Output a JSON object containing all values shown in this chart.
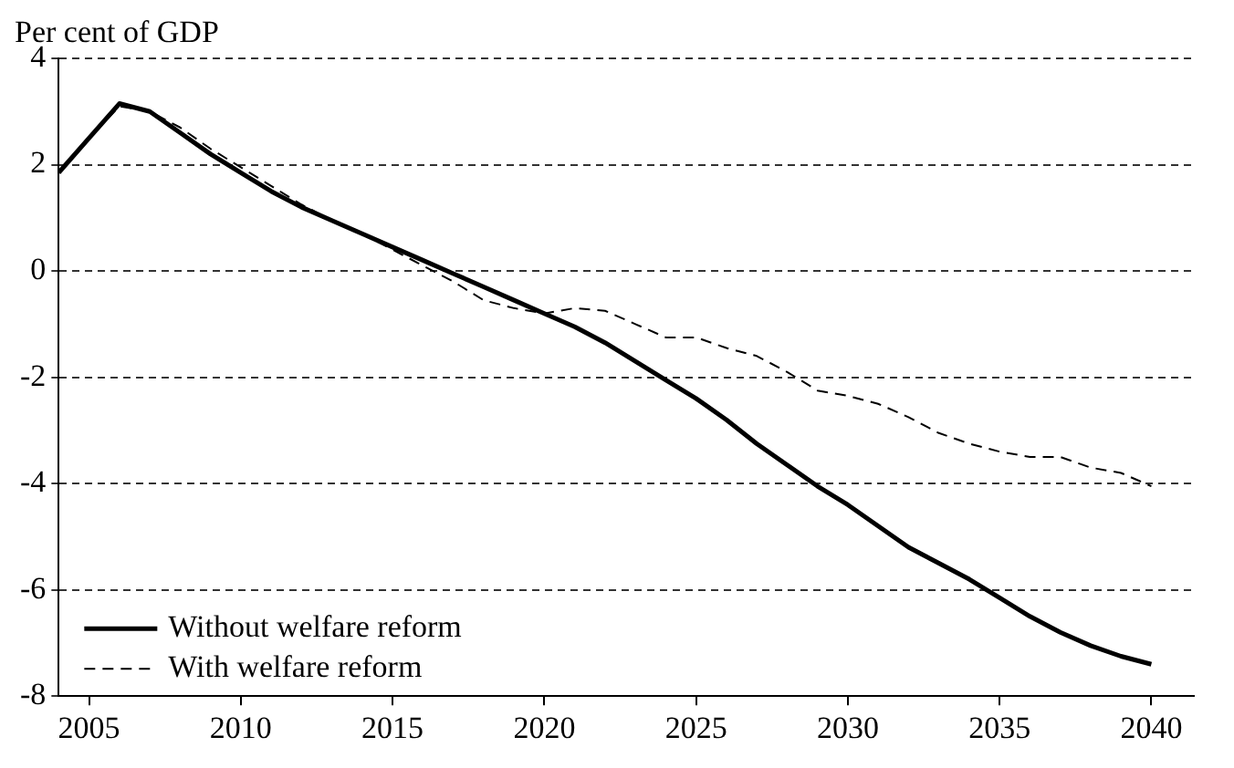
{
  "chart_data": {
    "type": "line",
    "ylabel": "Per cent of GDP",
    "x": [
      2004,
      2005,
      2006,
      2007,
      2008,
      2009,
      2010,
      2011,
      2012,
      2013,
      2014,
      2015,
      2016,
      2017,
      2018,
      2019,
      2020,
      2021,
      2022,
      2023,
      2024,
      2025,
      2026,
      2027,
      2028,
      2029,
      2030,
      2031,
      2032,
      2033,
      2034,
      2035,
      2036,
      2037,
      2038,
      2039,
      2040
    ],
    "series": [
      {
        "name": "Without welfare reform",
        "color": "#000000",
        "line_style": "solid",
        "values": [
          1.85,
          2.5,
          3.15,
          3.0,
          2.6,
          2.2,
          1.85,
          1.5,
          1.2,
          0.95,
          0.7,
          0.45,
          0.2,
          -0.05,
          -0.3,
          -0.55,
          -0.8,
          -1.05,
          -1.35,
          -1.7,
          -2.05,
          -2.4,
          -2.8,
          -3.25,
          -3.65,
          -4.05,
          -4.4,
          -4.8,
          -5.2,
          -5.5,
          -5.8,
          -6.15,
          -6.5,
          -6.8,
          -7.05,
          -7.25,
          -7.4
        ]
      },
      {
        "name": "With welfare reform",
        "color": "#000000",
        "line_style": "dashed",
        "values": [
          1.85,
          2.5,
          3.1,
          3.0,
          2.7,
          2.3,
          1.95,
          1.6,
          1.25,
          0.95,
          0.7,
          0.4,
          0.1,
          -0.2,
          -0.55,
          -0.7,
          -0.8,
          -0.7,
          -0.75,
          -1.0,
          -1.25,
          -1.25,
          -1.45,
          -1.6,
          -1.9,
          -2.25,
          -2.35,
          -2.5,
          -2.75,
          -3.05,
          -3.25,
          -3.4,
          -3.5,
          -3.5,
          -3.7,
          -3.8,
          -4.05
        ]
      }
    ],
    "xlim": [
      2004,
      2041.4
    ],
    "xticks": [
      2005,
      2010,
      2015,
      2020,
      2025,
      2030,
      2035,
      2040
    ],
    "ylim": [
      -8,
      4
    ],
    "yticks": [
      -8,
      -6,
      -4,
      -2,
      0,
      2,
      4
    ],
    "grid": "y",
    "legend": "bottom left",
    "marker": "none"
  }
}
